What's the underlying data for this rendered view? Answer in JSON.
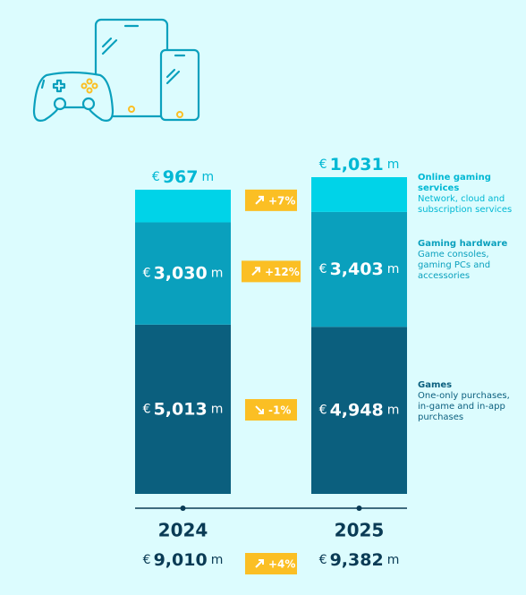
{
  "chart_data": {
    "type": "stacked-bar",
    "categories": [
      "2024",
      "2025"
    ],
    "currency": "€",
    "unit": "m",
    "series": [
      {
        "name": "Games",
        "description": "One-only purchases, in-game and in-app purchases",
        "color": "#0b5f7e",
        "label_color": "#0b5f7e",
        "values": [
          5013,
          4948
        ],
        "value_labels": [
          "5,013",
          "4,948"
        ],
        "change": "-1%"
      },
      {
        "name": "Gaming hardware",
        "description": "Game consoles, gaming PCs and accessories",
        "color": "#0aa0bd",
        "label_color": "#0aa0bd",
        "values": [
          3030,
          3403
        ],
        "value_labels": [
          "3,030",
          "3,403"
        ],
        "change": "+12%"
      },
      {
        "name": "Online gaming services",
        "description": "Network, cloud and subscription services",
        "color": "#00d3e8",
        "label_color": "#00b8d4",
        "values": [
          967,
          1031
        ],
        "value_labels": [
          "967",
          "1,031"
        ],
        "change": "+7%"
      }
    ],
    "totals": {
      "values": [
        9010,
        9382
      ],
      "value_labels": [
        "9,010",
        "9,382"
      ],
      "change": "+4%"
    },
    "badge_color": "#fbbf24"
  }
}
